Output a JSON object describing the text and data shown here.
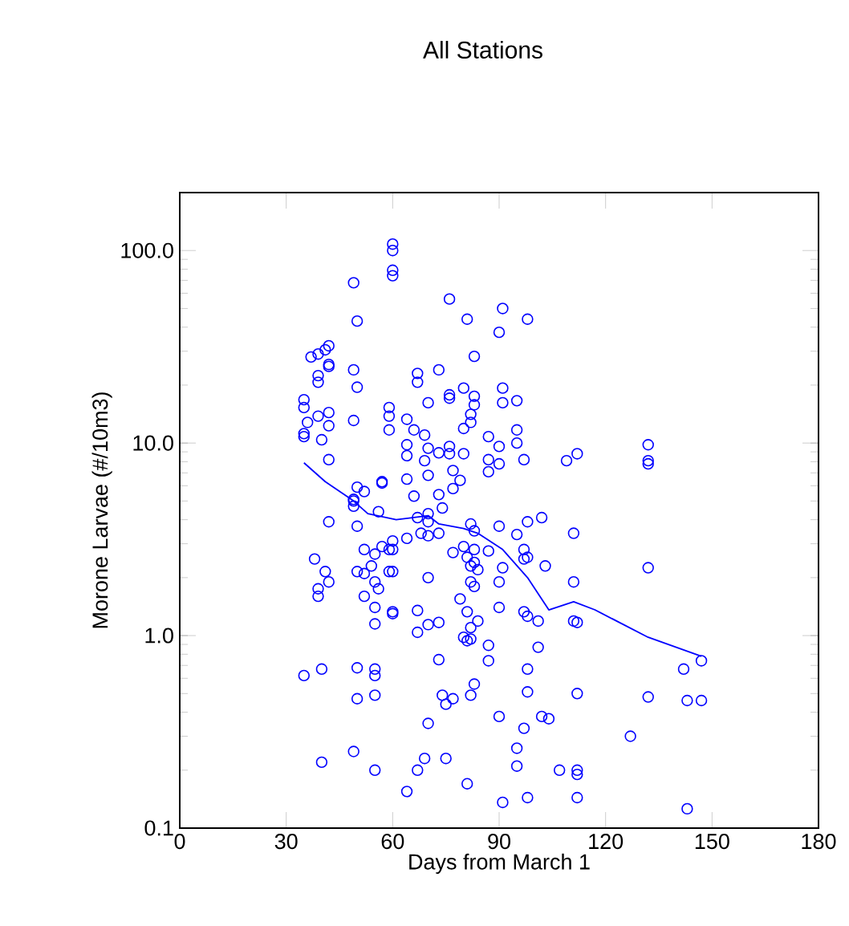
{
  "chart_data": {
    "type": "scatter",
    "title": "All Stations",
    "xlabel": "Days from March 1",
    "ylabel": "Morone Larvae (#/10m3)",
    "xlim": [
      0,
      180
    ],
    "xticks": [
      0,
      30,
      60,
      90,
      120,
      150,
      180
    ],
    "ylim": [
      0.1,
      200
    ],
    "yticks": [
      {
        "value": 0.1,
        "label": "0.1"
      },
      {
        "value": 1,
        "label": "1.0"
      },
      {
        "value": 10,
        "label": "10.0"
      },
      {
        "value": 100,
        "label": "100.0"
      }
    ],
    "log": "y",
    "grid": false,
    "marker": "circle",
    "series": [
      {
        "color": "#0000ff",
        "x": [
          60,
          60,
          60,
          60,
          49,
          50,
          37,
          39,
          41,
          42,
          42,
          49,
          39,
          39,
          35,
          35,
          39,
          42,
          35,
          35,
          40,
          49,
          59,
          59,
          59,
          76,
          81,
          91,
          98,
          90,
          83,
          67,
          67,
          73,
          80,
          76,
          76,
          83,
          83,
          70,
          91,
          91,
          95,
          64,
          66,
          69,
          82,
          82,
          80,
          87,
          95,
          95,
          64,
          64,
          70,
          73,
          76,
          76,
          80,
          90,
          87,
          69,
          90,
          87,
          97,
          109,
          112,
          57,
          64,
          70,
          77,
          79,
          66,
          73,
          77,
          132,
          132,
          132,
          50,
          42,
          36,
          42,
          42,
          50,
          52,
          57,
          49,
          49,
          49,
          56,
          42,
          50,
          38,
          41,
          42,
          39,
          39,
          50,
          52,
          55,
          57,
          59,
          52,
          54,
          55,
          56,
          52,
          55,
          60,
          55,
          59,
          60,
          60,
          35,
          40,
          50,
          55,
          55,
          50,
          55,
          40,
          49,
          55,
          60,
          60,
          74,
          67,
          70,
          70,
          73,
          64,
          68,
          70,
          82,
          83,
          90,
          95,
          98,
          102,
          111,
          77,
          80,
          83,
          87,
          81,
          83,
          82,
          84,
          82,
          83,
          91,
          90,
          97,
          97,
          98,
          103,
          70,
          67,
          67,
          70,
          73,
          79,
          81,
          90,
          97,
          98,
          101,
          111,
          111,
          84,
          82,
          80,
          81,
          82,
          87,
          87,
          73,
          101,
          98,
          83,
          82,
          98,
          112,
          74,
          77,
          75,
          70,
          90,
          97,
          102,
          104,
          95,
          69,
          75,
          67,
          95,
          107,
          112,
          112,
          64,
          81,
          91,
          98,
          112,
          132,
          112,
          147,
          142,
          132,
          143,
          147,
          127,
          143
        ],
        "values": [
          108,
          100,
          79,
          74,
          68,
          43,
          28,
          29,
          30.5,
          32,
          25,
          24,
          22.4,
          20.7,
          16.8,
          15.3,
          13.8,
          14.4,
          11.2,
          10.8,
          10.4,
          13.1,
          11.7,
          15.3,
          13.8,
          56,
          44,
          50,
          44,
          37.6,
          28.2,
          23,
          20.7,
          24,
          19.3,
          17.8,
          17.1,
          17.5,
          15.8,
          16.2,
          19.3,
          16.2,
          16.6,
          13.3,
          11.7,
          11,
          14.1,
          12.8,
          11.9,
          10.8,
          11.7,
          10,
          9.8,
          8.6,
          9.4,
          8.9,
          9.6,
          8.8,
          8.8,
          9.6,
          8.2,
          8.1,
          7.8,
          7.1,
          8.2,
          8.1,
          8.8,
          6.3,
          6.5,
          6.8,
          7.2,
          6.4,
          5.3,
          5.4,
          5.8,
          9.8,
          8.1,
          7.8,
          19.5,
          25.6,
          12.8,
          12.3,
          8.2,
          5.9,
          5.6,
          6.2,
          5.1,
          5,
          4.7,
          4.4,
          3.9,
          3.7,
          2.5,
          2.15,
          1.9,
          1.75,
          1.6,
          2.15,
          2.8,
          2.65,
          2.9,
          2.8,
          2.1,
          2.3,
          1.9,
          1.75,
          1.6,
          1.4,
          1.33,
          1.15,
          2.15,
          2.15,
          2.8,
          0.62,
          0.67,
          0.68,
          0.67,
          0.62,
          0.47,
          0.49,
          0.22,
          0.25,
          0.2,
          3.1,
          1.3,
          4.6,
          4.1,
          4.3,
          3.9,
          3.4,
          3.2,
          3.4,
          3.3,
          3.8,
          3.5,
          3.7,
          3.35,
          3.9,
          4.1,
          3.4,
          2.7,
          2.9,
          2.8,
          2.75,
          2.55,
          2.4,
          2.3,
          2.2,
          1.9,
          1.8,
          2.25,
          1.9,
          2.8,
          2.5,
          2.55,
          2.3,
          2,
          1.35,
          1.04,
          1.14,
          1.17,
          1.55,
          1.33,
          1.4,
          1.33,
          1.26,
          1.19,
          1.19,
          1.9,
          1.19,
          1.1,
          0.98,
          0.94,
          0.96,
          0.89,
          0.74,
          0.75,
          0.87,
          0.67,
          0.56,
          0.49,
          0.51,
          0.5,
          0.49,
          0.47,
          0.44,
          0.35,
          0.38,
          0.33,
          0.38,
          0.37,
          0.26,
          0.23,
          0.23,
          0.2,
          0.21,
          0.2,
          0.2,
          0.19,
          0.155,
          0.17,
          0.136,
          0.144,
          0.144,
          2.25,
          1.17,
          0.74,
          0.67,
          0.48,
          0.46,
          0.46,
          0.3,
          0.126
        ]
      },
      {
        "type": "line",
        "color": "#0000ff",
        "marker": "none",
        "x": [
          35,
          41,
          49,
          53,
          61,
          70,
          73,
          80,
          84,
          91,
          98,
          104,
          111,
          117,
          132,
          147
        ],
        "values": [
          7.9,
          6.3,
          5.0,
          4.3,
          4.0,
          4.2,
          3.8,
          3.6,
          3.4,
          2.8,
          2.0,
          1.36,
          1.5,
          1.36,
          0.98,
          0.78
        ]
      }
    ]
  }
}
